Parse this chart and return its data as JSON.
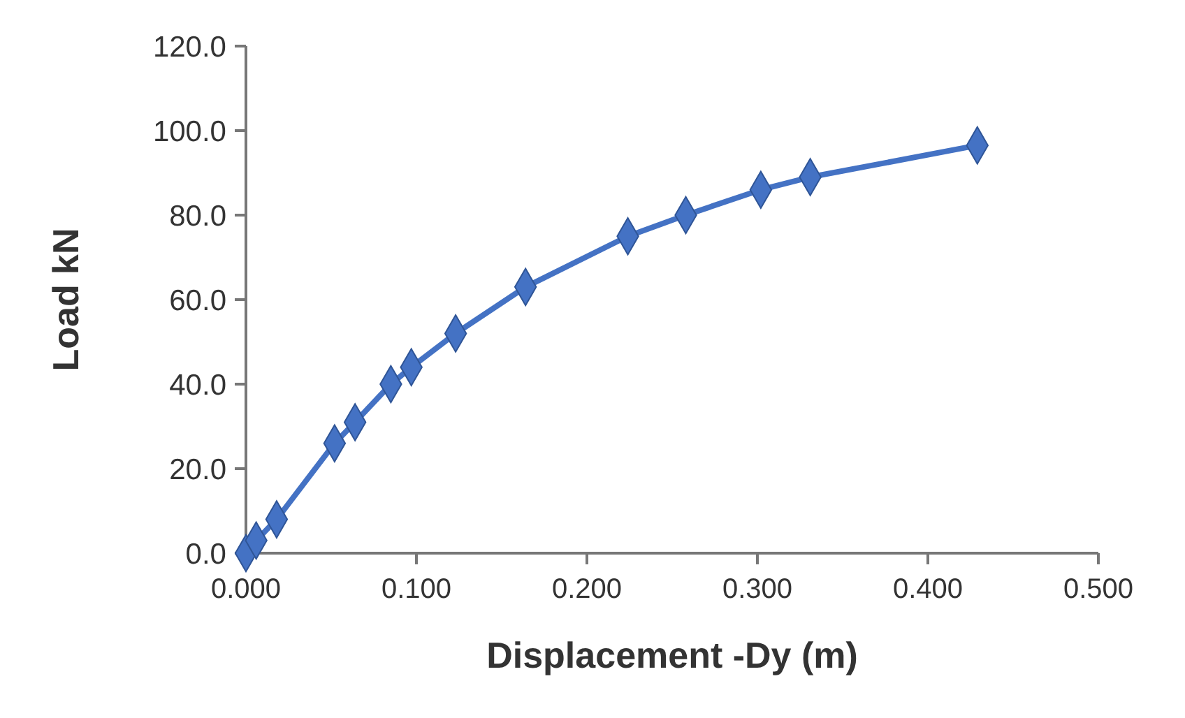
{
  "chart_data": {
    "type": "line",
    "xlabel": "Displacement -Dy (m)",
    "ylabel": "Load kN",
    "x": [
      0,
      0.006,
      0.018,
      0.052,
      0.064,
      0.085,
      0.097,
      0.123,
      0.164,
      0.224,
      0.258,
      0.302,
      0.331,
      0.429
    ],
    "series": [
      {
        "color": "#4472c4",
        "values": [
          0,
          3,
          8,
          26,
          31,
          40,
          44,
          52,
          63,
          75,
          80,
          86,
          89,
          96.5
        ]
      }
    ],
    "xlim": [
      0,
      0.5
    ],
    "xticks": [
      {
        "value": 0,
        "label": "0.000"
      },
      {
        "value": 0.1,
        "label": "0.100"
      },
      {
        "value": 0.2,
        "label": "0.200"
      },
      {
        "value": 0.3,
        "label": "0.300"
      },
      {
        "value": 0.4,
        "label": "0.400"
      },
      {
        "value": 0.5,
        "label": "0.500"
      }
    ],
    "ylim": [
      0,
      120
    ],
    "yticks": [
      {
        "value": 0,
        "label": "0.0"
      },
      {
        "value": 20,
        "label": "20.0"
      },
      {
        "value": 40,
        "label": "40.0"
      },
      {
        "value": 60,
        "label": "60.0"
      },
      {
        "value": 80,
        "label": "80.0"
      },
      {
        "value": 100,
        "label": "100.0"
      },
      {
        "value": 120,
        "label": "120.0"
      }
    ],
    "marker": "diamond",
    "grid": false
  }
}
